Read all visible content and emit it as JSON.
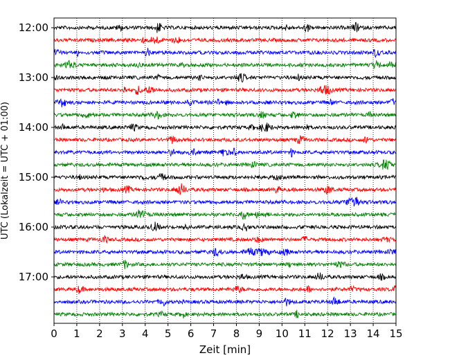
{
  "chart_data": {
    "type": "line",
    "title": "",
    "xlabel": "Zeit  [min]",
    "ylabel": "UTC (Lokalzeit = UTC + 01:00)",
    "xlim": [
      0,
      15
    ],
    "x_ticks": [
      0,
      1,
      2,
      3,
      4,
      5,
      6,
      7,
      8,
      9,
      10,
      11,
      12,
      13,
      14,
      15
    ],
    "x_tick_labels": [
      "0",
      "1",
      "2",
      "3",
      "4",
      "5",
      "6",
      "7",
      "8",
      "9",
      "10",
      "11",
      "12",
      "13",
      "14",
      "15"
    ],
    "y_ticks": [
      "12:00",
      "13:00",
      "14:00",
      "15:00",
      "16:00",
      "17:00"
    ],
    "y_start": "12:00",
    "y_end": "18:00",
    "trace_interval_minutes": 15,
    "x_grid": true,
    "grid_style": "dotted",
    "trace_colors": [
      "#000000",
      "#ff0000",
      "#0000ff",
      "#008000"
    ],
    "traces": [
      {
        "start": "12:00",
        "color": "#000000"
      },
      {
        "start": "12:15",
        "color": "#ff0000"
      },
      {
        "start": "12:30",
        "color": "#0000ff"
      },
      {
        "start": "12:45",
        "color": "#008000"
      },
      {
        "start": "13:00",
        "color": "#000000"
      },
      {
        "start": "13:15",
        "color": "#ff0000"
      },
      {
        "start": "13:30",
        "color": "#0000ff"
      },
      {
        "start": "13:45",
        "color": "#008000"
      },
      {
        "start": "14:00",
        "color": "#000000"
      },
      {
        "start": "14:15",
        "color": "#ff0000"
      },
      {
        "start": "14:30",
        "color": "#0000ff"
      },
      {
        "start": "14:45",
        "color": "#008000"
      },
      {
        "start": "15:00",
        "color": "#000000"
      },
      {
        "start": "15:15",
        "color": "#ff0000"
      },
      {
        "start": "15:30",
        "color": "#0000ff"
      },
      {
        "start": "15:45",
        "color": "#008000"
      },
      {
        "start": "16:00",
        "color": "#000000"
      },
      {
        "start": "16:15",
        "color": "#ff0000"
      },
      {
        "start": "16:30",
        "color": "#0000ff"
      },
      {
        "start": "16:45",
        "color": "#008000"
      },
      {
        "start": "17:00",
        "color": "#000000"
      },
      {
        "start": "17:15",
        "color": "#ff0000"
      },
      {
        "start": "17:30",
        "color": "#0000ff"
      },
      {
        "start": "17:45",
        "color": "#008000"
      }
    ]
  }
}
